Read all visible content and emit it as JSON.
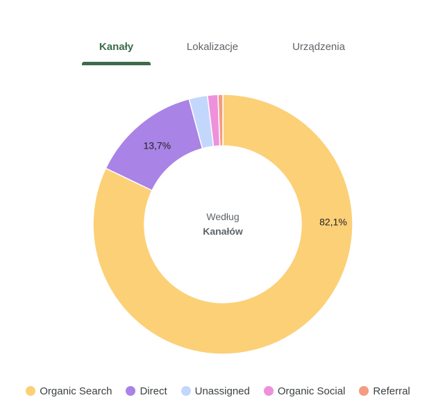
{
  "tabs": [
    {
      "label": "Kanały",
      "active": true
    },
    {
      "label": "Lokalizacje",
      "active": false
    },
    {
      "label": "Urządzenia",
      "active": false
    }
  ],
  "center_label": {
    "line1": "Według",
    "line2": "Kanałów"
  },
  "colors": {
    "accent": "#3d6b4a"
  },
  "chart_data": {
    "type": "pie",
    "donut": true,
    "categories": [
      "Organic Search",
      "Direct",
      "Unassigned",
      "Organic Social",
      "Referral"
    ],
    "values": [
      82.1,
      13.7,
      2.3,
      1.3,
      0.6
    ],
    "colors": [
      "#fcd077",
      "#a983e6",
      "#c3d7fc",
      "#ee91dc",
      "#f59b80"
    ],
    "data_labels": [
      "82,1%",
      "13,7%",
      "",
      "",
      ""
    ],
    "legend_position": "bottom"
  }
}
